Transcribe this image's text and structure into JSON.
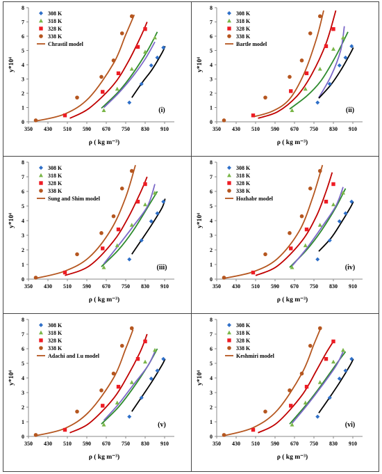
{
  "axis": {
    "xlabel": "ρ ( kg m⁻³)",
    "ylabel": "y*10⁴",
    "xlim": [
      350,
      950
    ],
    "ylim": [
      0,
      8
    ],
    "xticks": [
      350,
      430,
      510,
      590,
      670,
      750,
      830,
      910
    ],
    "yticks": [
      0,
      1,
      2,
      3,
      4,
      5,
      6,
      7,
      8
    ]
  },
  "colors": {
    "308 K": "#2e6fc8",
    "318 K": "#7ab648",
    "328 K": "#ee1c24",
    "338 K": "#b5561f",
    "line_338": "#b5561f",
    "line_328": "#c00000",
    "line_318": "#2e8b2e",
    "line_308": "#7b68c8",
    "line_black": "#000000"
  },
  "chart_data": [
    {
      "type": "scatter",
      "panel": "(i)",
      "model": "Chrastil model",
      "legend": [
        "308 K",
        "318 K",
        "328 K",
        "338 K",
        "Chrastil model"
      ],
      "series": [
        {
          "name": "308 K",
          "x": [
            765,
            815,
            855,
            880,
            905
          ],
          "y": [
            1.35,
            2.65,
            3.95,
            4.5,
            5.2
          ]
        },
        {
          "name": "318 K",
          "x": [
            660,
            715,
            775,
            830,
            870
          ],
          "y": [
            0.8,
            2.3,
            3.7,
            4.9,
            5.9
          ]
        },
        {
          "name": "328 K",
          "x": [
            500,
            655,
            720,
            800,
            830
          ],
          "y": [
            0.45,
            2.1,
            3.4,
            5.25,
            6.5
          ]
        },
        {
          "name": "338 K",
          "x": [
            380,
            550,
            650,
            700,
            735,
            775
          ],
          "y": [
            0.1,
            1.7,
            3.15,
            4.3,
            6.2,
            7.4
          ]
        }
      ],
      "fits": [
        {
          "color": "line_338",
          "x": [
            380,
            500,
            600,
            700,
            750,
            785
          ],
          "y": [
            0.05,
            0.55,
            1.7,
            4.1,
            6.1,
            7.5
          ]
        },
        {
          "color": "line_328",
          "x": [
            520,
            600,
            700,
            760,
            810,
            838
          ],
          "y": [
            0.25,
            0.95,
            2.6,
            4.2,
            5.9,
            7.0
          ]
        },
        {
          "color": "line_318",
          "x": [
            650,
            720,
            780,
            840,
            880
          ],
          "y": [
            0.95,
            2.1,
            3.4,
            5.0,
            6.3
          ]
        },
        {
          "color": "line_308",
          "x": [
            660,
            720,
            780,
            830,
            870
          ],
          "y": [
            1.0,
            2.0,
            3.2,
            4.4,
            5.6
          ]
        },
        {
          "color": "line_black",
          "x": [
            775,
            820,
            860,
            900,
            912
          ],
          "y": [
            1.7,
            2.8,
            3.7,
            4.85,
            5.3
          ]
        }
      ]
    },
    {
      "type": "scatter",
      "panel": "(ii)",
      "model": "Bartle model",
      "legend": [
        "308 K",
        "318 K",
        "328 K",
        "338 K",
        "Bartle model"
      ],
      "series": [
        {
          "name": "308 K",
          "x": [
            765,
            815,
            855,
            880,
            905
          ],
          "y": [
            1.35,
            2.65,
            3.95,
            4.5,
            5.3
          ]
        },
        {
          "name": "318 K",
          "x": [
            660,
            715,
            775,
            830,
            870
          ],
          "y": [
            0.8,
            2.3,
            3.7,
            5.1,
            5.9
          ]
        },
        {
          "name": "328 K",
          "x": [
            500,
            655,
            720,
            800,
            830
          ],
          "y": [
            0.45,
            2.15,
            3.4,
            5.3,
            6.5
          ]
        },
        {
          "name": "338 K",
          "x": [
            380,
            550,
            650,
            700,
            735,
            775
          ],
          "y": [
            0.1,
            1.7,
            3.15,
            4.3,
            6.2,
            7.4
          ]
        }
      ],
      "fits": [
        {
          "color": "line_338",
          "x": [
            500,
            580,
            650,
            710,
            760,
            790
          ],
          "y": [
            0.35,
            0.75,
            1.6,
            3.4,
            5.8,
            7.8
          ]
        },
        {
          "color": "line_328",
          "x": [
            520,
            600,
            680,
            740,
            800,
            840
          ],
          "y": [
            0.25,
            0.7,
            1.8,
            3.3,
            5.5,
            7.8
          ]
        },
        {
          "color": "line_318",
          "x": [
            650,
            720,
            780,
            840,
            890
          ],
          "y": [
            0.9,
            1.8,
            2.9,
            4.6,
            6.3
          ]
        },
        {
          "color": "line_308",
          "x": [
            770,
            820,
            860,
            875
          ],
          "y": [
            1.7,
            3.2,
            5.0,
            6.7
          ]
        },
        {
          "color": "line_black",
          "x": [
            770,
            820,
            860,
            900,
            912
          ],
          "y": [
            1.65,
            2.6,
            3.6,
            4.8,
            5.2
          ]
        }
      ]
    },
    {
      "type": "scatter",
      "panel": "(iii)",
      "model": "Sung and Shim model",
      "legend": [
        "308 K",
        "318 K",
        "328 K",
        "338 K",
        "Sung and Shim model"
      ],
      "series": [
        {
          "name": "308 K",
          "x": [
            765,
            815,
            855,
            880,
            905
          ],
          "y": [
            1.35,
            2.65,
            3.95,
            4.5,
            5.3
          ]
        },
        {
          "name": "318 K",
          "x": [
            660,
            715,
            775,
            830,
            870
          ],
          "y": [
            0.8,
            2.3,
            3.7,
            5.1,
            5.9
          ]
        },
        {
          "name": "328 K",
          "x": [
            500,
            655,
            720,
            800,
            830
          ],
          "y": [
            0.45,
            2.1,
            3.4,
            5.3,
            6.5
          ]
        },
        {
          "name": "338 K",
          "x": [
            380,
            550,
            650,
            700,
            735,
            775
          ],
          "y": [
            0.1,
            1.7,
            3.15,
            4.3,
            6.2,
            7.4
          ]
        }
      ],
      "fits": [
        {
          "color": "line_338",
          "x": [
            380,
            500,
            600,
            690,
            750,
            790
          ],
          "y": [
            0.05,
            0.55,
            1.5,
            3.4,
            5.6,
            7.8
          ]
        },
        {
          "color": "line_328",
          "x": [
            500,
            600,
            700,
            760,
            810,
            838
          ],
          "y": [
            0.25,
            0.9,
            2.6,
            4.2,
            5.9,
            7.0
          ]
        },
        {
          "color": "line_318",
          "x": [
            650,
            720,
            780,
            840,
            880
          ],
          "y": [
            0.85,
            2.0,
            3.3,
            4.9,
            6.0
          ]
        },
        {
          "color": "line_308",
          "x": [
            660,
            720,
            780,
            840,
            870
          ],
          "y": [
            1.05,
            2.3,
            3.6,
            5.0,
            6.5
          ]
        },
        {
          "color": "line_black",
          "x": [
            775,
            820,
            860,
            900,
            912
          ],
          "y": [
            1.7,
            2.8,
            3.8,
            4.9,
            5.5
          ]
        }
      ]
    },
    {
      "type": "scatter",
      "panel": "(iv)",
      "model": "Hozhabr model",
      "legend": [
        "308 K",
        "318 K",
        "328 K",
        "338 K",
        "Hozhabr model"
      ],
      "series": [
        {
          "name": "308 K",
          "x": [
            765,
            815,
            855,
            880,
            905
          ],
          "y": [
            1.35,
            2.65,
            3.95,
            4.5,
            5.3
          ]
        },
        {
          "name": "318 K",
          "x": [
            660,
            715,
            775,
            830,
            870
          ],
          "y": [
            0.8,
            2.3,
            3.7,
            5.1,
            5.9
          ]
        },
        {
          "name": "328 K",
          "x": [
            500,
            655,
            720,
            800,
            830
          ],
          "y": [
            0.45,
            2.1,
            3.4,
            5.3,
            6.5
          ]
        },
        {
          "name": "338 K",
          "x": [
            380,
            550,
            650,
            700,
            735,
            775
          ],
          "y": [
            0.1,
            1.7,
            3.15,
            4.3,
            6.2,
            7.4
          ]
        }
      ],
      "fits": [
        {
          "color": "line_338",
          "x": [
            380,
            500,
            600,
            690,
            745,
            785
          ],
          "y": [
            0.05,
            0.5,
            1.4,
            3.3,
            5.6,
            7.8
          ]
        },
        {
          "color": "line_328",
          "x": [
            510,
            600,
            700,
            760,
            800,
            825
          ],
          "y": [
            0.25,
            0.9,
            2.6,
            4.3,
            6.0,
            7.3
          ]
        },
        {
          "color": "line_318",
          "x": [
            650,
            720,
            780,
            840,
            880
          ],
          "y": [
            0.8,
            2.0,
            3.3,
            4.9,
            6.2
          ]
        },
        {
          "color": "line_308",
          "x": [
            660,
            720,
            780,
            840,
            870
          ],
          "y": [
            0.9,
            2.1,
            3.5,
            5.0,
            6.3
          ]
        },
        {
          "color": "line_black",
          "x": [
            770,
            820,
            860,
            900,
            912
          ],
          "y": [
            1.9,
            2.8,
            3.8,
            4.9,
            5.3
          ]
        }
      ]
    },
    {
      "type": "scatter",
      "panel": "(v)",
      "model": "Adachi and Lu model",
      "legend": [
        "308 K",
        "318 K",
        "328 K",
        "338 K",
        "Adachi and Lu model"
      ],
      "series": [
        {
          "name": "308 K",
          "x": [
            765,
            815,
            855,
            880,
            905
          ],
          "y": [
            1.35,
            2.65,
            3.95,
            4.5,
            5.3
          ]
        },
        {
          "name": "318 K",
          "x": [
            660,
            715,
            775,
            830,
            870
          ],
          "y": [
            0.8,
            2.3,
            3.7,
            5.1,
            5.9
          ]
        },
        {
          "name": "328 K",
          "x": [
            500,
            655,
            720,
            800,
            830
          ],
          "y": [
            0.45,
            2.1,
            3.4,
            5.3,
            6.5
          ]
        },
        {
          "name": "338 K",
          "x": [
            380,
            550,
            650,
            700,
            735,
            775
          ],
          "y": [
            0.1,
            1.7,
            3.15,
            4.3,
            6.2,
            7.4
          ]
        }
      ],
      "fits": [
        {
          "color": "line_338",
          "x": [
            380,
            500,
            600,
            700,
            750,
            780
          ],
          "y": [
            0.05,
            0.55,
            1.7,
            4.0,
            6.0,
            7.3
          ]
        },
        {
          "color": "line_328",
          "x": [
            520,
            600,
            700,
            760,
            810,
            838
          ],
          "y": [
            0.25,
            0.9,
            2.6,
            4.2,
            5.8,
            7.0
          ]
        },
        {
          "color": "line_318",
          "x": [
            650,
            720,
            780,
            840,
            880
          ],
          "y": [
            0.85,
            2.0,
            3.3,
            4.8,
            6.0
          ]
        },
        {
          "color": "line_308",
          "x": [
            660,
            720,
            780,
            840,
            870
          ],
          "y": [
            1.1,
            2.2,
            3.5,
            4.8,
            5.8
          ]
        },
        {
          "color": "line_black",
          "x": [
            775,
            820,
            860,
            900,
            912
          ],
          "y": [
            1.7,
            2.8,
            3.8,
            4.9,
            5.3
          ]
        }
      ]
    },
    {
      "type": "scatter",
      "panel": "(vi)",
      "model": "Keshmiri model",
      "legend": [
        "308 K",
        "318 K",
        "328 K",
        "338 K",
        "Keshmiri model"
      ],
      "series": [
        {
          "name": "308 K",
          "x": [
            765,
            815,
            855,
            880,
            905
          ],
          "y": [
            1.35,
            2.65,
            3.95,
            4.5,
            5.3
          ]
        },
        {
          "name": "318 K",
          "x": [
            660,
            715,
            775,
            830,
            870
          ],
          "y": [
            0.8,
            2.3,
            3.7,
            5.1,
            5.9
          ]
        },
        {
          "name": "328 K",
          "x": [
            500,
            655,
            720,
            800,
            830
          ],
          "y": [
            0.45,
            2.1,
            3.4,
            5.3,
            6.5
          ]
        },
        {
          "name": "338 K",
          "x": [
            380,
            550,
            650,
            700,
            735,
            775
          ],
          "y": [
            0.1,
            1.7,
            3.15,
            4.3,
            6.2,
            7.4
          ]
        }
      ],
      "fits": [
        {
          "color": "line_338",
          "x": [
            380,
            500,
            600,
            700,
            750,
            780
          ],
          "y": [
            0.05,
            0.6,
            1.8,
            4.3,
            6.3,
            7.5
          ]
        },
        {
          "color": "line_328",
          "x": [
            520,
            600,
            700,
            760,
            800,
            830
          ],
          "y": [
            0.25,
            0.95,
            2.8,
            4.5,
            5.7,
            6.5
          ]
        },
        {
          "color": "line_318",
          "x": [
            650,
            720,
            780,
            840,
            880
          ],
          "y": [
            0.85,
            2.2,
            3.5,
            4.9,
            5.8
          ]
        },
        {
          "color": "line_308",
          "x": [
            660,
            720,
            780,
            840,
            870
          ],
          "y": [
            0.9,
            2.1,
            3.4,
            4.8,
            5.8
          ]
        },
        {
          "color": "line_black",
          "x": [
            770,
            820,
            860,
            900,
            912
          ],
          "y": [
            1.6,
            2.8,
            3.8,
            4.9,
            5.3
          ]
        }
      ]
    }
  ]
}
